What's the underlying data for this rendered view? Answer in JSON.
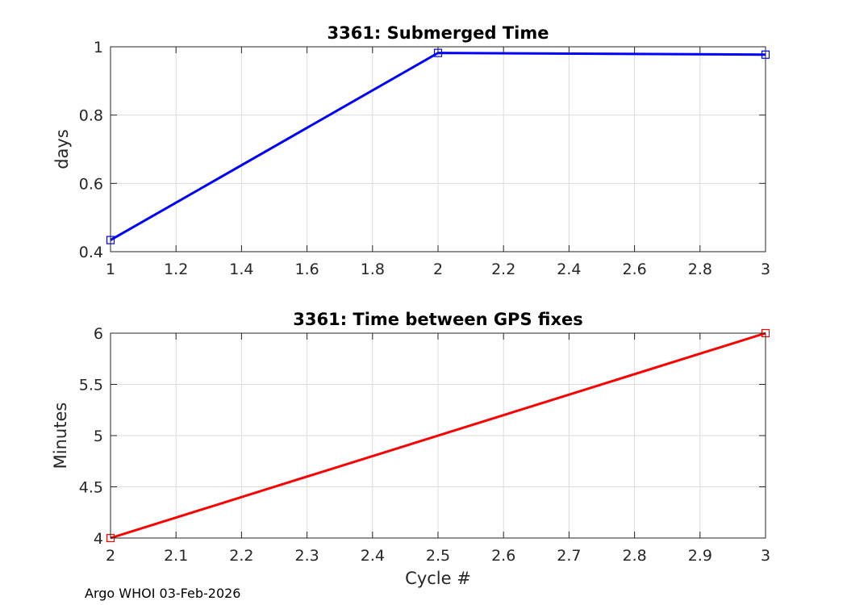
{
  "footer": "Argo WHOI 03-Feb-2026",
  "chart_data": [
    {
      "type": "line",
      "title": "3361: Submerged Time",
      "xlabel": "",
      "ylabel": "days",
      "xlim": [
        1,
        3
      ],
      "ylim": [
        0.4,
        1
      ],
      "xticks": [
        "1",
        "1.2",
        "1.4",
        "1.6",
        "1.8",
        "2",
        "2.2",
        "2.4",
        "2.6",
        "2.8",
        "3"
      ],
      "yticks": [
        "0.4",
        "0.6",
        "0.8",
        "1"
      ],
      "grid": true,
      "marker": "square",
      "series": [
        {
          "color": "#0000ff",
          "x": [
            1,
            2,
            3
          ],
          "y": [
            0.434,
            0.982,
            0.977
          ]
        }
      ]
    },
    {
      "type": "line",
      "title": "3361: Time between GPS fixes",
      "xlabel": "Cycle #",
      "ylabel": "Minutes",
      "xlim": [
        2,
        3
      ],
      "ylim": [
        4,
        6
      ],
      "xticks": [
        "2",
        "2.1",
        "2.2",
        "2.3",
        "2.4",
        "2.5",
        "2.6",
        "2.7",
        "2.8",
        "2.9",
        "3"
      ],
      "yticks": [
        "4",
        "4.5",
        "5",
        "5.5",
        "6"
      ],
      "grid": true,
      "marker": "square",
      "series": [
        {
          "color": "#ff0000",
          "x": [
            2,
            3
          ],
          "y": [
            4,
            6
          ]
        }
      ]
    }
  ]
}
